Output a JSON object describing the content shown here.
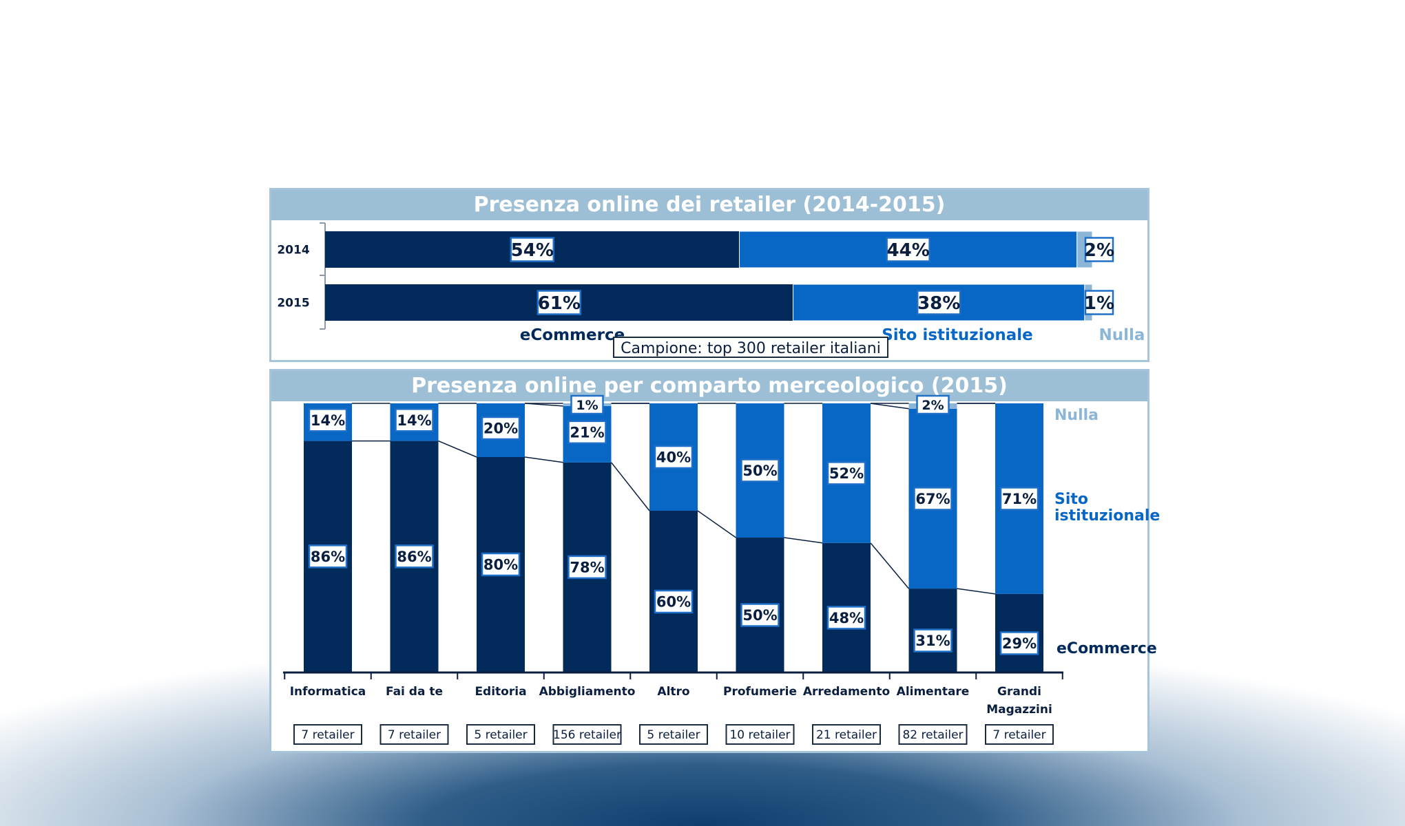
{
  "colors": {
    "ecommerce": "#022a5a",
    "sito": "#0867c4",
    "nulla": "#8cb6d8",
    "title_bg": "#9dbfd6"
  },
  "chart_data": [
    {
      "type": "bar",
      "orientation": "horizontal",
      "stacked": true,
      "title": "Presenza online dei retailer (2014-2015)",
      "categories": [
        "2014",
        "2015"
      ],
      "series": [
        {
          "name": "eCommerce",
          "values": [
            54,
            61
          ]
        },
        {
          "name": "Sito istituzionale",
          "values": [
            44,
            38
          ]
        },
        {
          "name": "Nulla",
          "values": [
            2,
            1
          ]
        }
      ],
      "unit": "%",
      "note": "Campione: top  300 retailer italiani"
    },
    {
      "type": "bar",
      "stacked": true,
      "title": "Presenza online per comparto merceologico (2015)",
      "categories": [
        "Informatica",
        "Fai da te",
        "Editoria",
        "Abbigliamento",
        "Altro",
        "Profumerie",
        "Arredamento",
        "Alimentare",
        "Grandi Magazzini"
      ],
      "retailers": [
        "7 retailer",
        "7 retailer",
        "5 retailer",
        "156 retailer",
        "5 retailer",
        "10 retailer",
        "21 retailer",
        "82 retailer",
        "7 retailer"
      ],
      "series": [
        {
          "name": "eCommerce",
          "values": [
            86,
            86,
            80,
            78,
            60,
            50,
            48,
            31,
            29
          ]
        },
        {
          "name": "Sito istituzionale",
          "values": [
            14,
            14,
            20,
            21,
            40,
            50,
            52,
            67,
            71
          ]
        },
        {
          "name": "Nulla",
          "values": [
            0,
            0,
            0,
            1,
            0,
            0,
            0,
            2,
            0
          ]
        }
      ],
      "legend": [
        "Nulla",
        "Sito istituzionale",
        "eCommerce"
      ],
      "unit": "%"
    }
  ]
}
